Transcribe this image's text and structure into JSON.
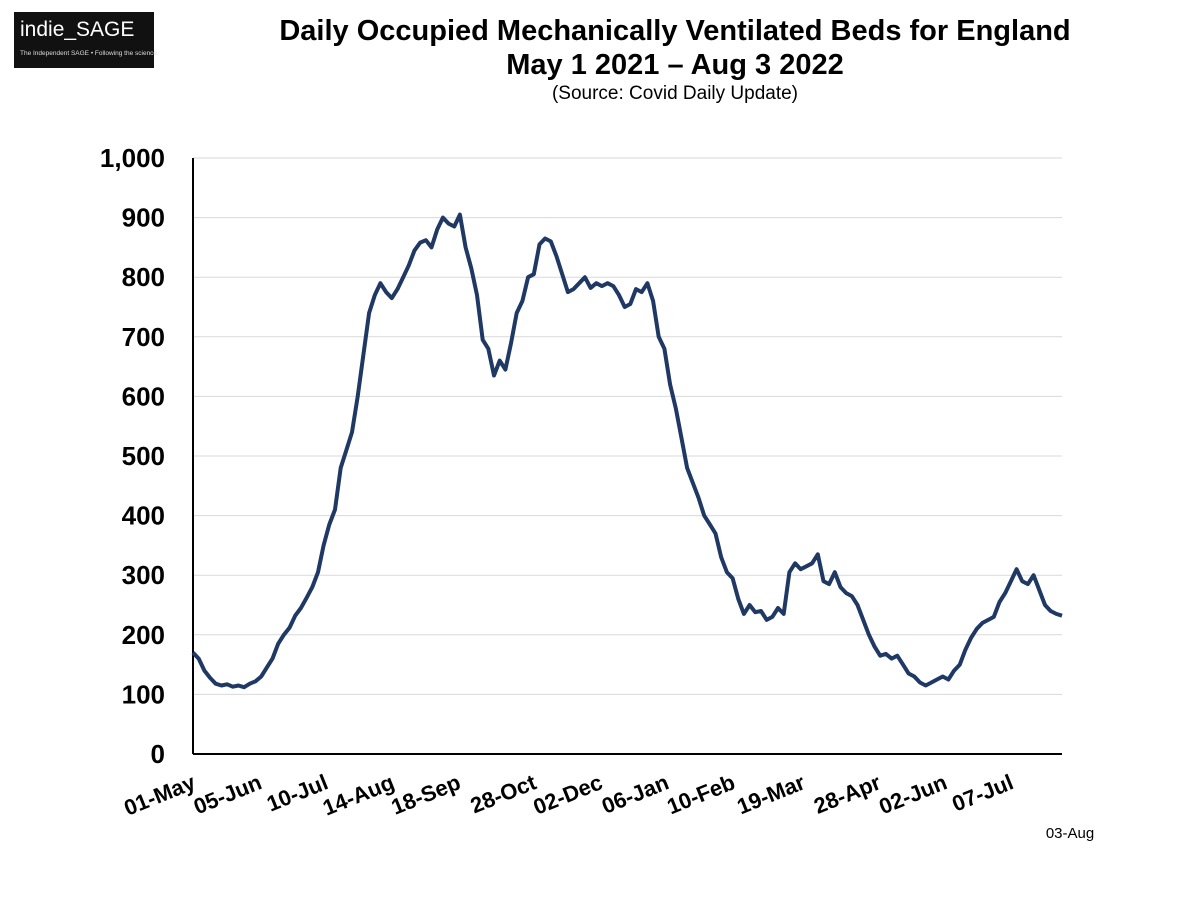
{
  "logo": {
    "main": "indie_SAGE",
    "tagline": "The Independent SAGE • Following the science"
  },
  "colors": {
    "line": "#1f3864",
    "grid": "#d9d9d9",
    "axis": "#000000"
  },
  "chart_data": {
    "type": "line",
    "title": "Daily Occupied Mechanically Ventilated Beds for England",
    "subtitle": "May 1 2021 – Aug 3 2022",
    "source": "(Source: Covid Daily Update)",
    "xlabel": "",
    "ylabel": "",
    "ylim": [
      0,
      1000
    ],
    "yticks": [
      0,
      100,
      200,
      300,
      400,
      500,
      600,
      700,
      800,
      900,
      1000
    ],
    "ytick_labels": [
      "0",
      "100",
      "200",
      "300",
      "400",
      "500",
      "600",
      "700",
      "800",
      "900",
      "1,000"
    ],
    "xlim": [
      "2021-05-01",
      "2022-08-03"
    ],
    "xticks": [
      {
        "date": "2021-05-01",
        "label": "01-May"
      },
      {
        "date": "2021-06-05",
        "label": "05-Jun"
      },
      {
        "date": "2021-07-10",
        "label": "10-Jul"
      },
      {
        "date": "2021-08-14",
        "label": "14-Aug"
      },
      {
        "date": "2021-09-18",
        "label": "18-Sep"
      },
      {
        "date": "2021-10-28",
        "label": "28-Oct"
      },
      {
        "date": "2021-12-02",
        "label": "02-Dec"
      },
      {
        "date": "2022-01-06",
        "label": "06-Jan"
      },
      {
        "date": "2022-02-10",
        "label": "10-Feb"
      },
      {
        "date": "2022-03-19",
        "label": "19-Mar"
      },
      {
        "date": "2022-04-28",
        "label": "28-Apr"
      },
      {
        "date": "2022-06-02",
        "label": "02-Jun"
      },
      {
        "date": "2022-07-07",
        "label": "07-Jul"
      }
    ],
    "end_label": "03-Aug",
    "grid": true,
    "legend": "none",
    "series": [
      {
        "points": [
          [
            "2021-05-01",
            170
          ],
          [
            "2021-05-04",
            160
          ],
          [
            "2021-05-07",
            140
          ],
          [
            "2021-05-10",
            128
          ],
          [
            "2021-05-13",
            118
          ],
          [
            "2021-05-16",
            115
          ],
          [
            "2021-05-19",
            117
          ],
          [
            "2021-05-22",
            113
          ],
          [
            "2021-05-25",
            115
          ],
          [
            "2021-05-28",
            112
          ],
          [
            "2021-05-31",
            118
          ],
          [
            "2021-06-03",
            122
          ],
          [
            "2021-06-06",
            130
          ],
          [
            "2021-06-09",
            145
          ],
          [
            "2021-06-12",
            160
          ],
          [
            "2021-06-15",
            185
          ],
          [
            "2021-06-18",
            200
          ],
          [
            "2021-06-21",
            212
          ],
          [
            "2021-06-24",
            232
          ],
          [
            "2021-06-27",
            245
          ],
          [
            "2021-06-30",
            262
          ],
          [
            "2021-07-03",
            280
          ],
          [
            "2021-07-06",
            305
          ],
          [
            "2021-07-09",
            350
          ],
          [
            "2021-07-12",
            385
          ],
          [
            "2021-07-15",
            410
          ],
          [
            "2021-07-18",
            480
          ],
          [
            "2021-07-21",
            510
          ],
          [
            "2021-07-24",
            540
          ],
          [
            "2021-07-27",
            600
          ],
          [
            "2021-07-30",
            670
          ],
          [
            "2021-08-02",
            740
          ],
          [
            "2021-08-05",
            770
          ],
          [
            "2021-08-08",
            790
          ],
          [
            "2021-08-11",
            775
          ],
          [
            "2021-08-14",
            765
          ],
          [
            "2021-08-17",
            780
          ],
          [
            "2021-08-20",
            800
          ],
          [
            "2021-08-23",
            820
          ],
          [
            "2021-08-26",
            845
          ],
          [
            "2021-08-29",
            858
          ],
          [
            "2021-09-01",
            862
          ],
          [
            "2021-09-04",
            850
          ],
          [
            "2021-09-07",
            880
          ],
          [
            "2021-09-10",
            900
          ],
          [
            "2021-09-13",
            890
          ],
          [
            "2021-09-16",
            885
          ],
          [
            "2021-09-19",
            905
          ],
          [
            "2021-09-22",
            850
          ],
          [
            "2021-09-25",
            815
          ],
          [
            "2021-09-28",
            770
          ],
          [
            "2021-10-01",
            695
          ],
          [
            "2021-10-04",
            680
          ],
          [
            "2021-10-07",
            635
          ],
          [
            "2021-10-10",
            660
          ],
          [
            "2021-10-13",
            645
          ],
          [
            "2021-10-16",
            690
          ],
          [
            "2021-10-19",
            740
          ],
          [
            "2021-10-22",
            760
          ],
          [
            "2021-10-25",
            800
          ],
          [
            "2021-10-28",
            805
          ],
          [
            "2021-10-31",
            855
          ],
          [
            "2021-11-03",
            865
          ],
          [
            "2021-11-06",
            860
          ],
          [
            "2021-11-09",
            835
          ],
          [
            "2021-11-12",
            805
          ],
          [
            "2021-11-15",
            775
          ],
          [
            "2021-11-18",
            780
          ],
          [
            "2021-11-21",
            790
          ],
          [
            "2021-11-24",
            800
          ],
          [
            "2021-11-27",
            782
          ],
          [
            "2021-11-30",
            790
          ],
          [
            "2021-12-03",
            785
          ],
          [
            "2021-12-06",
            790
          ],
          [
            "2021-12-09",
            785
          ],
          [
            "2021-12-12",
            770
          ],
          [
            "2021-12-15",
            750
          ],
          [
            "2021-12-18",
            755
          ],
          [
            "2021-12-21",
            780
          ],
          [
            "2021-12-24",
            775
          ],
          [
            "2021-12-27",
            790
          ],
          [
            "2021-12-30",
            760
          ],
          [
            "2022-01-02",
            700
          ],
          [
            "2022-01-05",
            680
          ],
          [
            "2022-01-08",
            620
          ],
          [
            "2022-01-11",
            580
          ],
          [
            "2022-01-14",
            530
          ],
          [
            "2022-01-17",
            480
          ],
          [
            "2022-01-20",
            455
          ],
          [
            "2022-01-23",
            430
          ],
          [
            "2022-01-26",
            400
          ],
          [
            "2022-01-29",
            385
          ],
          [
            "2022-02-01",
            370
          ],
          [
            "2022-02-04",
            330
          ],
          [
            "2022-02-07",
            305
          ],
          [
            "2022-02-10",
            295
          ],
          [
            "2022-02-13",
            260
          ],
          [
            "2022-02-16",
            235
          ],
          [
            "2022-02-19",
            250
          ],
          [
            "2022-02-22",
            238
          ],
          [
            "2022-02-25",
            240
          ],
          [
            "2022-02-28",
            225
          ],
          [
            "2022-03-03",
            230
          ],
          [
            "2022-03-06",
            245
          ],
          [
            "2022-03-09",
            235
          ],
          [
            "2022-03-12",
            305
          ],
          [
            "2022-03-15",
            320
          ],
          [
            "2022-03-18",
            310
          ],
          [
            "2022-03-21",
            315
          ],
          [
            "2022-03-24",
            320
          ],
          [
            "2022-03-27",
            335
          ],
          [
            "2022-03-30",
            290
          ],
          [
            "2022-04-02",
            285
          ],
          [
            "2022-04-05",
            305
          ],
          [
            "2022-04-08",
            280
          ],
          [
            "2022-04-11",
            270
          ],
          [
            "2022-04-14",
            265
          ],
          [
            "2022-04-17",
            250
          ],
          [
            "2022-04-20",
            225
          ],
          [
            "2022-04-23",
            200
          ],
          [
            "2022-04-26",
            180
          ],
          [
            "2022-04-29",
            165
          ],
          [
            "2022-05-02",
            168
          ],
          [
            "2022-05-05",
            160
          ],
          [
            "2022-05-08",
            165
          ],
          [
            "2022-05-11",
            150
          ],
          [
            "2022-05-14",
            135
          ],
          [
            "2022-05-17",
            130
          ],
          [
            "2022-05-20",
            120
          ],
          [
            "2022-05-23",
            115
          ],
          [
            "2022-05-26",
            120
          ],
          [
            "2022-05-29",
            125
          ],
          [
            "2022-06-01",
            130
          ],
          [
            "2022-06-04",
            125
          ],
          [
            "2022-06-07",
            140
          ],
          [
            "2022-06-10",
            150
          ],
          [
            "2022-06-13",
            175
          ],
          [
            "2022-06-16",
            195
          ],
          [
            "2022-06-19",
            210
          ],
          [
            "2022-06-22",
            220
          ],
          [
            "2022-06-25",
            225
          ],
          [
            "2022-06-28",
            230
          ],
          [
            "2022-07-01",
            255
          ],
          [
            "2022-07-04",
            270
          ],
          [
            "2022-07-07",
            290
          ],
          [
            "2022-07-10",
            310
          ],
          [
            "2022-07-13",
            290
          ],
          [
            "2022-07-16",
            285
          ],
          [
            "2022-07-19",
            300
          ],
          [
            "2022-07-22",
            275
          ],
          [
            "2022-07-25",
            250
          ],
          [
            "2022-07-28",
            240
          ],
          [
            "2022-07-31",
            235
          ],
          [
            "2022-08-03",
            232
          ]
        ]
      }
    ]
  }
}
